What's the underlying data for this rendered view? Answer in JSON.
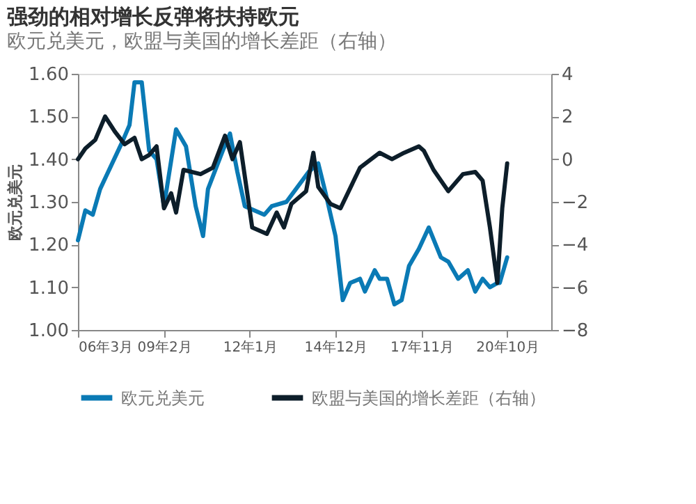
{
  "chart_data": {
    "type": "line",
    "title": "强劲的相对增长反弹将扶持欧元",
    "subtitle": "欧元兑美元，欧盟与美国的增长差距（右轴）",
    "ylabel": "欧元兑美元",
    "xlim": [
      "2006-03",
      "2022-04"
    ],
    "xticks": [
      {
        "value": "2006-03",
        "label": "06年3月"
      },
      {
        "value": "2009-02",
        "label": "09年2月"
      },
      {
        "value": "2012-01",
        "label": "12年1月"
      },
      {
        "value": "2014-12",
        "label": "14年12月"
      },
      {
        "value": "2017-11",
        "label": "17年11月"
      },
      {
        "value": "2020-10",
        "label": "20年10月"
      }
    ],
    "ylim": [
      1.0,
      1.6
    ],
    "yticks": [
      {
        "value": 1.0,
        "label": "1.00"
      },
      {
        "value": 1.1,
        "label": "1.10"
      },
      {
        "value": 1.2,
        "label": "1.20"
      },
      {
        "value": 1.3,
        "label": "1.30"
      },
      {
        "value": 1.4,
        "label": "1.40"
      },
      {
        "value": 1.5,
        "label": "1.50"
      },
      {
        "value": 1.6,
        "label": "1.60"
      }
    ],
    "y2lim": [
      -8,
      4
    ],
    "y2ticks": [
      -8,
      -6,
      -4,
      -2,
      0,
      2,
      4
    ],
    "grid": false,
    "legend": "bottom",
    "marker": "none",
    "line_style": "solid",
    "series": [
      {
        "name": "欧元兑美元",
        "color": "#0a7ab5",
        "x": [
          "2006-03",
          "2006-06",
          "2006-09",
          "2006-12",
          "2007-09",
          "2007-12",
          "2008-02",
          "2008-05",
          "2008-08",
          "2008-11",
          "2009-02",
          "2009-07",
          "2009-11",
          "2010-03",
          "2010-06",
          "2010-08",
          "2011-02",
          "2011-05",
          "2011-08",
          "2011-11",
          "2012-07",
          "2012-10",
          "2013-04",
          "2014-01",
          "2014-05",
          "2014-08",
          "2014-12",
          "2015-03",
          "2015-06",
          "2015-10",
          "2015-12",
          "2016-04",
          "2016-06",
          "2016-09",
          "2016-12",
          "2017-03",
          "2017-06",
          "2017-10",
          "2018-02",
          "2018-07",
          "2018-10",
          "2019-02",
          "2019-06",
          "2019-09",
          "2019-12",
          "2020-03",
          "2020-06",
          "2020-07",
          "2020-10"
        ],
        "values": [
          1.21,
          1.28,
          1.27,
          1.33,
          1.44,
          1.48,
          1.58,
          1.58,
          1.42,
          1.4,
          1.29,
          1.47,
          1.43,
          1.29,
          1.22,
          1.33,
          1.42,
          1.46,
          1.37,
          1.29,
          1.27,
          1.29,
          1.3,
          1.37,
          1.39,
          1.32,
          1.22,
          1.07,
          1.11,
          1.12,
          1.09,
          1.14,
          1.12,
          1.12,
          1.06,
          1.07,
          1.15,
          1.19,
          1.24,
          1.17,
          1.16,
          1.12,
          1.14,
          1.09,
          1.12,
          1.1,
          1.11,
          1.11,
          1.17
        ]
      },
      {
        "name": "欧盟与美国的增长差距（右轴）",
        "color": "#0d1e2a",
        "axis": "y2",
        "x": [
          "2006-03",
          "2006-06",
          "2006-10",
          "2007-02",
          "2007-06",
          "2007-10",
          "2008-02",
          "2008-05",
          "2008-08",
          "2008-11",
          "2009-02",
          "2009-05",
          "2009-07",
          "2009-10",
          "2010-05",
          "2010-10",
          "2011-03",
          "2011-06",
          "2011-09",
          "2012-02",
          "2012-08",
          "2012-12",
          "2013-03",
          "2013-06",
          "2013-12",
          "2014-03",
          "2014-05",
          "2014-10",
          "2015-02",
          "2015-10",
          "2016-06",
          "2016-11",
          "2017-04",
          "2017-10",
          "2017-12",
          "2018-04",
          "2018-10",
          "2019-04",
          "2019-09",
          "2019-12",
          "2020-03",
          "2020-06",
          "2020-08",
          "2020-10"
        ],
        "values": [
          0.0,
          0.5,
          0.9,
          2.0,
          1.3,
          0.7,
          1.0,
          0.0,
          0.2,
          0.6,
          -2.3,
          -1.6,
          -2.5,
          -0.5,
          -0.7,
          -0.4,
          1.1,
          0.0,
          0.8,
          -3.2,
          -3.5,
          -2.5,
          -3.2,
          -2.1,
          -1.5,
          0.3,
          -1.3,
          -2.1,
          -2.3,
          -0.4,
          0.3,
          0.0,
          0.3,
          0.6,
          0.4,
          -0.5,
          -1.5,
          -0.7,
          -0.6,
          -1.0,
          -3.2,
          -5.8,
          -2.3,
          -0.2
        ]
      }
    ]
  }
}
